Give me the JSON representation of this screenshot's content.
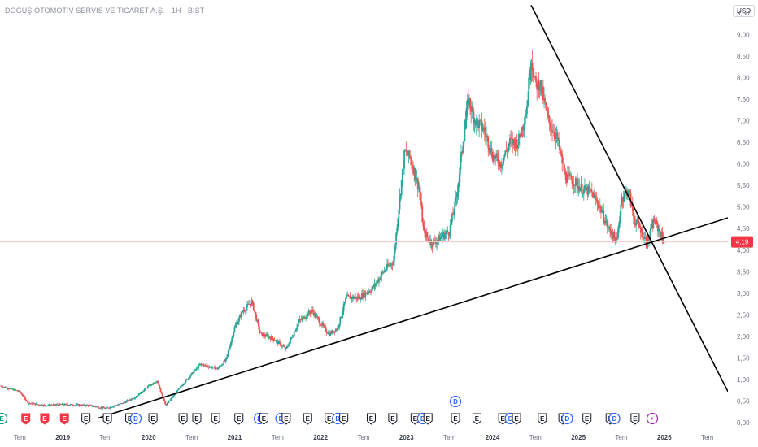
{
  "header": {
    "title": "DOĞUŞ OTOMOTİV SERVİS VE TİCARET A.Ş. · 1H · BIST",
    "currency": "USD"
  },
  "colors": {
    "up": "#26a69a",
    "down": "#ef5350",
    "trendline": "#000000",
    "price_line": "#f7c6c5",
    "last_price_bg": "#f23645",
    "event_e": "#f23645",
    "event_neutral": "#131722",
    "event_d": "#2962ff",
    "event_split": "#9c27b0",
    "event_teal": "#089981"
  },
  "chart_data": {
    "type": "candlestick",
    "title": "DOĞUŞ OTOMOTİV SERVİS VE TİCARET A.Ş. · 1H · BIST",
    "currency": "USD",
    "x_range": [
      2018.27,
      2026.74
    ],
    "ylim": [
      0,
      9.8
    ],
    "y_ticks": [
      "0,00",
      "0,50",
      "1,00",
      "1,50",
      "2,00",
      "2,50",
      "3,00",
      "3,50",
      "4,00",
      "4,50",
      "5,00",
      "5,50",
      "6,00",
      "6,50",
      "7,00",
      "7,50",
      "8,00",
      "8,50",
      "9,00",
      "9,50"
    ],
    "x_ticks": [
      {
        "label": "Tem",
        "t": 2018.5,
        "bold": false
      },
      {
        "label": "2019",
        "t": 2019.0,
        "bold": true
      },
      {
        "label": "Tem",
        "t": 2019.5,
        "bold": false
      },
      {
        "label": "2020",
        "t": 2020.0,
        "bold": true
      },
      {
        "label": "Tem",
        "t": 2020.5,
        "bold": false
      },
      {
        "label": "2021",
        "t": 2021.0,
        "bold": true
      },
      {
        "label": "Tem",
        "t": 2021.5,
        "bold": false
      },
      {
        "label": "2022",
        "t": 2022.0,
        "bold": true
      },
      {
        "label": "Tem",
        "t": 2022.5,
        "bold": false
      },
      {
        "label": "2023",
        "t": 2023.0,
        "bold": true
      },
      {
        "label": "Tem",
        "t": 2023.5,
        "bold": false
      },
      {
        "label": "2024",
        "t": 2024.0,
        "bold": true
      },
      {
        "label": "Tem",
        "t": 2024.5,
        "bold": false
      },
      {
        "label": "2025",
        "t": 2025.0,
        "bold": true
      },
      {
        "label": "Tem",
        "t": 2025.5,
        "bold": false
      },
      {
        "label": "2026",
        "t": 2026.0,
        "bold": true
      },
      {
        "label": "Tem",
        "t": 2026.5,
        "bold": false
      }
    ],
    "last_price": 4.19,
    "last_price_label": "4,19",
    "price_path": [
      [
        2018.27,
        0.85
      ],
      [
        2018.5,
        0.72
      ],
      [
        2018.6,
        0.45
      ],
      [
        2018.8,
        0.4
      ],
      [
        2019.0,
        0.42
      ],
      [
        2019.3,
        0.4
      ],
      [
        2019.5,
        0.33
      ],
      [
        2019.7,
        0.45
      ],
      [
        2019.85,
        0.6
      ],
      [
        2020.0,
        0.85
      ],
      [
        2020.1,
        0.95
      ],
      [
        2020.2,
        0.4
      ],
      [
        2020.4,
        0.9
      ],
      [
        2020.6,
        1.35
      ],
      [
        2020.8,
        1.25
      ],
      [
        2020.9,
        1.45
      ],
      [
        2021.0,
        2.2
      ],
      [
        2021.1,
        2.6
      ],
      [
        2021.2,
        2.8
      ],
      [
        2021.3,
        2.05
      ],
      [
        2021.45,
        1.95
      ],
      [
        2021.6,
        1.7
      ],
      [
        2021.75,
        2.35
      ],
      [
        2021.9,
        2.6
      ],
      [
        2022.0,
        2.3
      ],
      [
        2022.1,
        2.05
      ],
      [
        2022.2,
        2.2
      ],
      [
        2022.3,
        2.9
      ],
      [
        2022.45,
        2.9
      ],
      [
        2022.6,
        3.1
      ],
      [
        2022.75,
        3.55
      ],
      [
        2022.85,
        3.75
      ],
      [
        2022.9,
        4.8
      ],
      [
        2022.98,
        6.3
      ],
      [
        2023.05,
        6.1
      ],
      [
        2023.15,
        5.4
      ],
      [
        2023.2,
        4.4
      ],
      [
        2023.3,
        4.15
      ],
      [
        2023.4,
        4.3
      ],
      [
        2023.5,
        4.45
      ],
      [
        2023.58,
        5.2
      ],
      [
        2023.65,
        6.4
      ],
      [
        2023.72,
        7.5
      ],
      [
        2023.8,
        7.0
      ],
      [
        2023.9,
        6.8
      ],
      [
        2024.0,
        6.2
      ],
      [
        2024.1,
        6.0
      ],
      [
        2024.2,
        6.5
      ],
      [
        2024.3,
        6.5
      ],
      [
        2024.4,
        7.3
      ],
      [
        2024.45,
        8.5
      ],
      [
        2024.5,
        7.8
      ],
      [
        2024.55,
        7.9
      ],
      [
        2024.65,
        7.0
      ],
      [
        2024.75,
        6.6
      ],
      [
        2024.85,
        5.7
      ],
      [
        2024.95,
        5.6
      ],
      [
        2025.05,
        5.4
      ],
      [
        2025.15,
        5.35
      ],
      [
        2025.25,
        5.0
      ],
      [
        2025.35,
        4.5
      ],
      [
        2025.45,
        4.2
      ],
      [
        2025.5,
        5.2
      ],
      [
        2025.58,
        5.4
      ],
      [
        2025.65,
        4.7
      ],
      [
        2025.72,
        4.5
      ],
      [
        2025.8,
        4.15
      ],
      [
        2025.88,
        4.7
      ],
      [
        2025.95,
        4.4
      ],
      [
        2026.0,
        4.19
      ]
    ],
    "trendlines": [
      {
        "name": "rising-support",
        "from": [
          2019.25,
          0.0
        ],
        "to": [
          2026.74,
          4.75
        ]
      },
      {
        "name": "falling-resistance",
        "from": [
          2024.45,
          9.68
        ],
        "to": [
          2026.74,
          0.72
        ]
      }
    ],
    "events": [
      {
        "t": 2018.29,
        "letter": "E",
        "kind": "teal"
      },
      {
        "t": 2018.57,
        "letter": "E",
        "kind": "e"
      },
      {
        "t": 2018.79,
        "letter": "E",
        "kind": "e"
      },
      {
        "t": 2019.02,
        "letter": "E",
        "kind": "e"
      },
      {
        "t": 2019.27,
        "letter": "E",
        "kind": "neutral"
      },
      {
        "t": 2019.52,
        "letter": "E",
        "kind": "neutral"
      },
      {
        "t": 2019.78,
        "letter": "E",
        "kind": "neutral"
      },
      {
        "t": 2019.85,
        "letter": "D",
        "kind": "d"
      },
      {
        "t": 2020.05,
        "letter": "E",
        "kind": "neutral"
      },
      {
        "t": 2020.4,
        "letter": "E",
        "kind": "neutral"
      },
      {
        "t": 2020.56,
        "letter": "E",
        "kind": "neutral"
      },
      {
        "t": 2020.78,
        "letter": "E",
        "kind": "neutral"
      },
      {
        "t": 2021.05,
        "letter": "E",
        "kind": "neutral"
      },
      {
        "t": 2021.29,
        "letter": "D",
        "kind": "d"
      },
      {
        "t": 2021.34,
        "letter": "E",
        "kind": "neutral"
      },
      {
        "t": 2021.54,
        "letter": "D",
        "kind": "d"
      },
      {
        "t": 2021.6,
        "letter": "E",
        "kind": "neutral"
      },
      {
        "t": 2021.85,
        "letter": "E",
        "kind": "neutral"
      },
      {
        "t": 2022.1,
        "letter": "E",
        "kind": "neutral"
      },
      {
        "t": 2022.2,
        "letter": "D",
        "kind": "d"
      },
      {
        "t": 2022.27,
        "letter": "E",
        "kind": "neutral"
      },
      {
        "t": 2022.59,
        "letter": "E",
        "kind": "neutral"
      },
      {
        "t": 2022.84,
        "letter": "E",
        "kind": "neutral"
      },
      {
        "t": 2023.1,
        "letter": "E",
        "kind": "neutral"
      },
      {
        "t": 2023.19,
        "letter": "D",
        "kind": "d"
      },
      {
        "t": 2023.25,
        "letter": "E",
        "kind": "neutral"
      },
      {
        "t": 2023.57,
        "letter": "E",
        "kind": "neutral"
      },
      {
        "t": 2023.57,
        "letter": "D",
        "kind": "d",
        "row": 2
      },
      {
        "t": 2023.82,
        "letter": "E",
        "kind": "neutral"
      },
      {
        "t": 2024.12,
        "letter": "E",
        "kind": "neutral"
      },
      {
        "t": 2024.21,
        "letter": "D",
        "kind": "d"
      },
      {
        "t": 2024.28,
        "letter": "E",
        "kind": "neutral"
      },
      {
        "t": 2024.58,
        "letter": "E",
        "kind": "neutral"
      },
      {
        "t": 2024.82,
        "letter": "E",
        "kind": "neutral"
      },
      {
        "t": 2024.87,
        "letter": "D",
        "kind": "d"
      },
      {
        "t": 2025.1,
        "letter": "E",
        "kind": "neutral"
      },
      {
        "t": 2025.37,
        "letter": "E",
        "kind": "neutral"
      },
      {
        "t": 2025.42,
        "letter": "D",
        "kind": "d"
      },
      {
        "t": 2025.66,
        "letter": "E",
        "kind": "neutral"
      },
      {
        "t": 2025.86,
        "letter": "⚡",
        "kind": "split"
      }
    ]
  }
}
